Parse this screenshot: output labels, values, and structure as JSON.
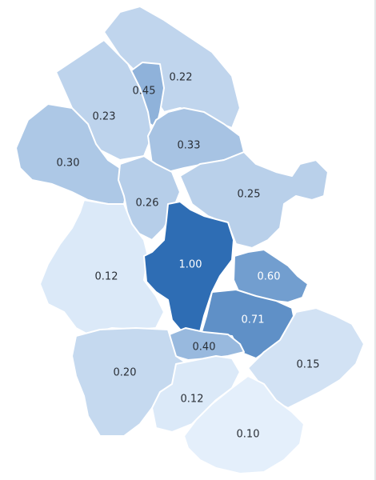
{
  "colors": {
    "scale_low": "#e4effb",
    "scale_high": "#2e6db4",
    "label_dark": "#2a2f36",
    "label_light": "#ffffff"
  },
  "regions": [
    {
      "id": "n-top",
      "value": 0.22,
      "label": "0.22"
    },
    {
      "id": "n-strip",
      "value": 0.45,
      "label": "0.45"
    },
    {
      "id": "nw",
      "value": 0.23,
      "label": "0.23"
    },
    {
      "id": "w",
      "value": 0.3,
      "label": "0.30"
    },
    {
      "id": "n-center",
      "value": 0.33,
      "label": "0.33"
    },
    {
      "id": "center-west",
      "value": 0.26,
      "label": "0.26"
    },
    {
      "id": "ne",
      "value": 0.25,
      "label": "0.25"
    },
    {
      "id": "west-large",
      "value": 0.12,
      "label": "0.12"
    },
    {
      "id": "core",
      "value": 1.0,
      "label": "1.00"
    },
    {
      "id": "east-mid",
      "value": 0.6,
      "label": "0.60"
    },
    {
      "id": "southeast-mid",
      "value": 0.71,
      "label": "0.71"
    },
    {
      "id": "south-small",
      "value": 0.4,
      "label": "0.40"
    },
    {
      "id": "sw",
      "value": 0.2,
      "label": "0.20"
    },
    {
      "id": "south-center",
      "value": 0.12,
      "label": "0.12"
    },
    {
      "id": "se",
      "value": 0.15,
      "label": "0.15"
    },
    {
      "id": "south-bottom",
      "value": 0.1,
      "label": "0.10"
    }
  ]
}
